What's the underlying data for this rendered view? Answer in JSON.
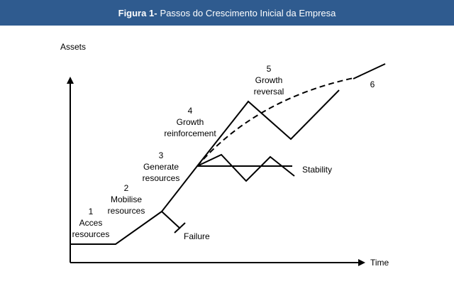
{
  "header": {
    "label": "Figura 1-",
    "title": "Passos do Crescimento Inicial da Empresa"
  },
  "axes": {
    "y": "Assets",
    "x": "Time"
  },
  "stages": [
    {
      "number": "1",
      "lines": [
        "Acces",
        "resources"
      ]
    },
    {
      "number": "2",
      "lines": [
        "Mobilise",
        "resources"
      ]
    },
    {
      "number": "3",
      "lines": [
        "Generate",
        "resources"
      ]
    },
    {
      "number": "4",
      "lines": [
        "Growth",
        "reinforcement"
      ]
    },
    {
      "number": "5",
      "lines": [
        "Growth",
        "reversal"
      ]
    },
    {
      "number": "6",
      "lines": []
    }
  ],
  "outcomes": {
    "failure": "Failure",
    "stability": "Stability"
  }
}
